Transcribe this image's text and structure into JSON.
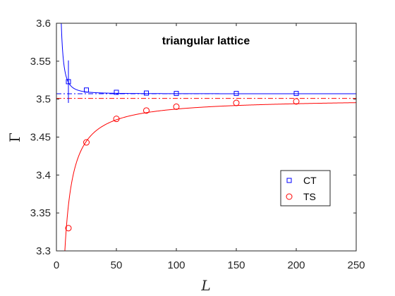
{
  "chart_data": {
    "type": "scatter",
    "title": "triangular lattice",
    "xlabel": "L",
    "ylabel": "Γ",
    "xlim": [
      0,
      250
    ],
    "ylim": [
      3.3,
      3.6
    ],
    "xticks": [
      0,
      50,
      100,
      150,
      200,
      250
    ],
    "yticks": [
      3.3,
      3.35,
      3.4,
      3.45,
      3.5,
      3.55,
      3.6
    ],
    "xtick_labels": [
      "0",
      "50",
      "100",
      "150",
      "200",
      "250"
    ],
    "ytick_labels": [
      "3.3",
      "3.35",
      "3.4",
      "3.45",
      "3.5",
      "3.55",
      "3.6"
    ],
    "legend_position": "lower-right",
    "series": [
      {
        "name": "CT",
        "marker": "square",
        "color": "#0000ff",
        "x": [
          10,
          25,
          50,
          75,
          100,
          150,
          200
        ],
        "y": [
          3.523,
          3.512,
          3.509,
          3.508,
          3.5075,
          3.5075,
          3.5075
        ],
        "errorbar_x": 10,
        "errorbar_range": [
          3.495,
          3.551
        ],
        "fit_asymptote": 3.5071,
        "fit_coefficient": 1.5,
        "fit_exponent": 2
      },
      {
        "name": "TS",
        "marker": "circle",
        "color": "#ff0000",
        "x": [
          10,
          25,
          50,
          75,
          100,
          150,
          200
        ],
        "y": [
          3.33,
          3.443,
          3.474,
          3.485,
          3.49,
          3.495,
          3.497
        ],
        "fit_asymptote": 3.501,
        "fit_coefficient": 1.41,
        "fit_exponent": 1
      }
    ]
  }
}
